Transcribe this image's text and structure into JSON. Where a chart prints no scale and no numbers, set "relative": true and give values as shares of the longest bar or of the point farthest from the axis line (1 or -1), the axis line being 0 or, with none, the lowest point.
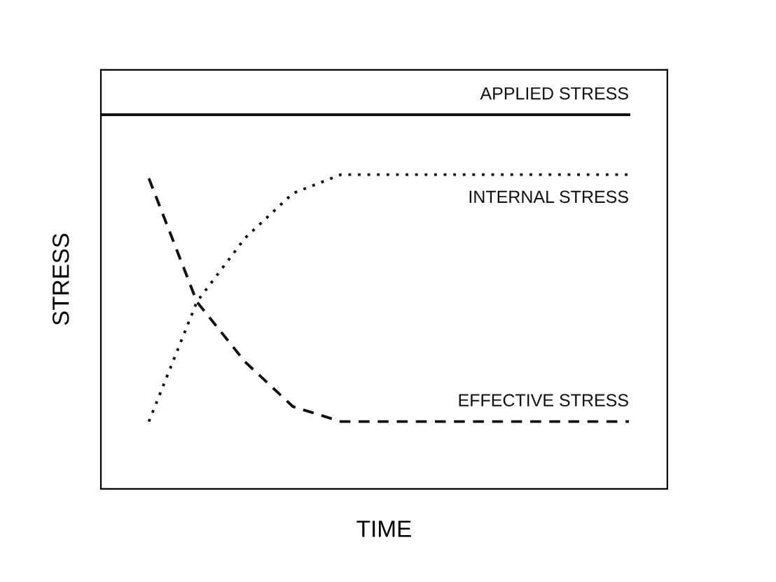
{
  "chart_data": {
    "type": "line",
    "relative": true,
    "xlabel": "TIME",
    "ylabel": "STRESS",
    "legend": false,
    "tick_labels": false,
    "categories": [
      null,
      null,
      null,
      null,
      null,
      null,
      null,
      null,
      null,
      null,
      null,
      null
    ],
    "series": [
      {
        "name": "APPLIED STRESS",
        "color": "#111111",
        "line_style": "solid",
        "values": [
          1,
          1,
          1,
          1,
          1,
          1,
          1,
          1,
          1,
          1,
          1,
          1
        ]
      },
      {
        "name": "INTERNAL STRESS",
        "color": "#111111",
        "line_style": "dotted",
        "values": [
          null,
          0.18,
          0.5,
          0.67,
          0.79,
          0.84,
          0.84,
          0.84,
          0.84,
          0.84,
          0.84,
          0.84
        ]
      },
      {
        "name": "EFFECTIVE STRESS",
        "color": "#111111",
        "line_style": "dashed",
        "values": [
          null,
          0.83,
          0.5,
          0.34,
          0.22,
          0.18,
          0.18,
          0.18,
          0.18,
          0.18,
          0.18,
          0.18
        ]
      }
    ]
  }
}
